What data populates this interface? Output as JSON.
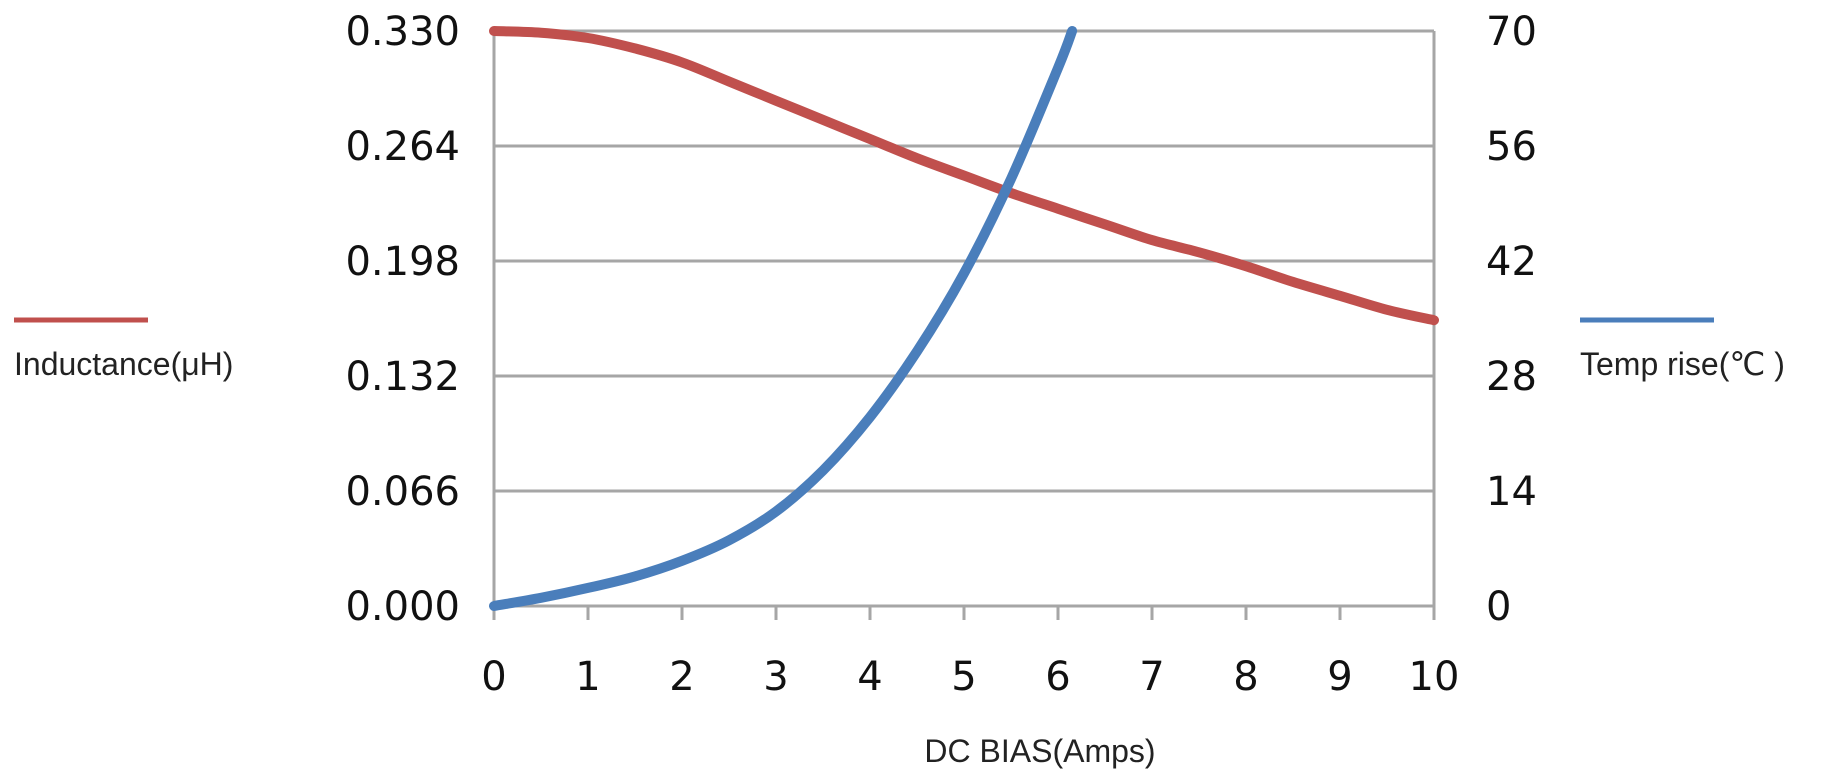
{
  "chart_data": {
    "type": "line",
    "title": "",
    "xlabel": "DC BIAS(Amps)",
    "ylabel_left": "Inductance(μH)",
    "ylabel_right": "Temp rise(℃ )",
    "x_ticks": [
      "0",
      "1",
      "2",
      "3",
      "4",
      "5",
      "6",
      "7",
      "8",
      "9",
      "10"
    ],
    "y_left_ticks": [
      "0.000",
      "0.066",
      "0.132",
      "0.198",
      "0.264",
      "0.330"
    ],
    "y_right_ticks": [
      "0",
      "14",
      "28",
      "42",
      "56",
      "70"
    ],
    "xlim": [
      0,
      10
    ],
    "ylim_left": [
      0,
      0.33
    ],
    "ylim_right": [
      0,
      70
    ],
    "grid": "horizontal",
    "series": [
      {
        "name": "Inductance(μH)",
        "axis": "left",
        "color": "#c0504d",
        "x": [
          0,
          0.5,
          1,
          1.5,
          2,
          2.5,
          3,
          3.5,
          4,
          4.5,
          5,
          5.5,
          6,
          6.5,
          7,
          7.5,
          8,
          8.5,
          9,
          9.5,
          10
        ],
        "y": [
          0.33,
          0.329,
          0.326,
          0.32,
          0.312,
          0.301,
          0.29,
          0.279,
          0.268,
          0.257,
          0.247,
          0.237,
          0.228,
          0.219,
          0.21,
          0.203,
          0.195,
          0.186,
          0.178,
          0.17,
          0.164
        ]
      },
      {
        "name": "Temp rise(℃ )",
        "axis": "right",
        "color": "#4a7ebb",
        "x": [
          0,
          0.5,
          1,
          1.5,
          2,
          2.5,
          3,
          3.5,
          4,
          4.5,
          5,
          5.5,
          6,
          6.15
        ],
        "y": [
          0,
          1,
          2.2,
          3.6,
          5.5,
          8,
          11.5,
          16.5,
          23,
          31,
          40.5,
          52,
          65.5,
          70
        ]
      }
    ]
  }
}
